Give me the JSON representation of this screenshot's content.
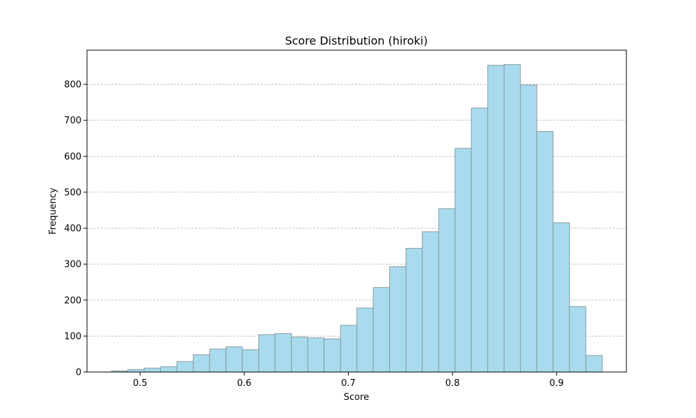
{
  "chart_data": {
    "type": "bar",
    "title": "Score Distribution (hiroki)",
    "xlabel": "Score",
    "ylabel": "Frequency",
    "xlim": [
      0.449,
      0.967
    ],
    "ylim": [
      0,
      895
    ],
    "x_ticks": [
      0.5,
      0.6,
      0.7,
      0.8,
      0.9
    ],
    "x_tick_labels": [
      "0.5",
      "0.6",
      "0.7",
      "0.8",
      "0.9"
    ],
    "y_ticks": [
      0,
      100,
      200,
      300,
      400,
      500,
      600,
      700,
      800
    ],
    "y_tick_labels": [
      "0",
      "100",
      "200",
      "300",
      "400",
      "500",
      "600",
      "700",
      "800"
    ],
    "grid": "y-dashed",
    "bin_start": 0.4725,
    "bin_width": 0.01571,
    "values": [
      3,
      7,
      11,
      15,
      29,
      48,
      64,
      70,
      62,
      104,
      107,
      97,
      95,
      92,
      130,
      178,
      235,
      293,
      344,
      390,
      454,
      622,
      734,
      853,
      855,
      798,
      669,
      415,
      182,
      46
    ],
    "colors": {
      "bar_fill": "#a8dbee",
      "bar_edge": "#8a9aa0",
      "grid": "#b0b0b0"
    }
  }
}
